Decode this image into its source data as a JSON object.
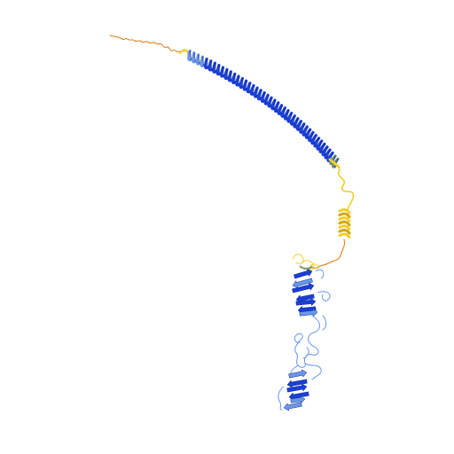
{
  "colors": {
    "background": "#ffffff",
    "very_high_confidence": "#1a3fd6",
    "confident": "#6a98e8",
    "low_confidence": "#f2d02a",
    "very_low_confidence": "#e0801e"
  },
  "structure": {
    "subject": "protein-ribbon",
    "segments": [
      "disordered-n-terminal-tail",
      "long-alpha-helix",
      "linker",
      "short-helix",
      "beta-sheet-domain-upper",
      "loop-region",
      "beta-sheet-domain-lower"
    ]
  }
}
